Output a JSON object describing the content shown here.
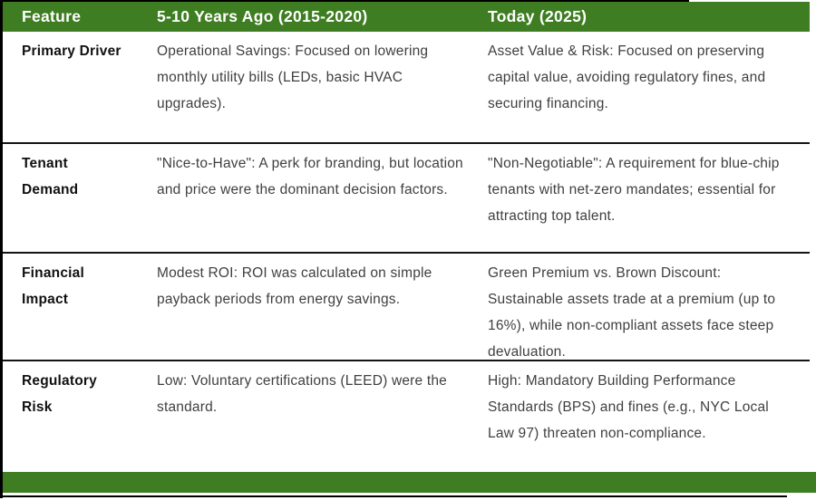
{
  "colors": {
    "header_bg": "#3e7d21",
    "footer_bg": "#3e7d21",
    "row_divider": "#141414",
    "frame_border": "#000000",
    "header_text": "#ffffff",
    "body_text": "#3f3f3f",
    "feature_text": "#111111"
  },
  "table": {
    "headers": [
      "Feature",
      "5-10 Years Ago (2015-2020)",
      "Today (2025)"
    ],
    "rows": [
      {
        "feature": "Primary Driver",
        "past": "Operational Savings: Focused on lowering monthly utility bills (LEDs, basic HVAC upgrades).",
        "today": "Asset Value & Risk: Focused on preserving capital value, avoiding regulatory fines, and securing financing."
      },
      {
        "feature": "Tenant\nDemand",
        "past": "\"Nice-to-Have\": A perk for branding, but location and price were the dominant decision factors.",
        "today": "\"Non-Negotiable\": A requirement for blue-chip tenants with net-zero mandates; essential for attracting top talent."
      },
      {
        "feature": "Financial\nImpact",
        "past": "Modest ROI: ROI was calculated on simple payback periods from energy savings.",
        "today": "Green Premium vs. Brown Discount: Sustainable assets trade at a premium (up to 16%), while non-compliant assets face steep devaluation."
      },
      {
        "feature": "Regulatory\nRisk",
        "past": "Low: Voluntary certifications (LEED) were the standard.",
        "today": "High: Mandatory Building Performance Standards (BPS) and fines (e.g., NYC Local Law 97) threaten non-compliance."
      }
    ]
  }
}
